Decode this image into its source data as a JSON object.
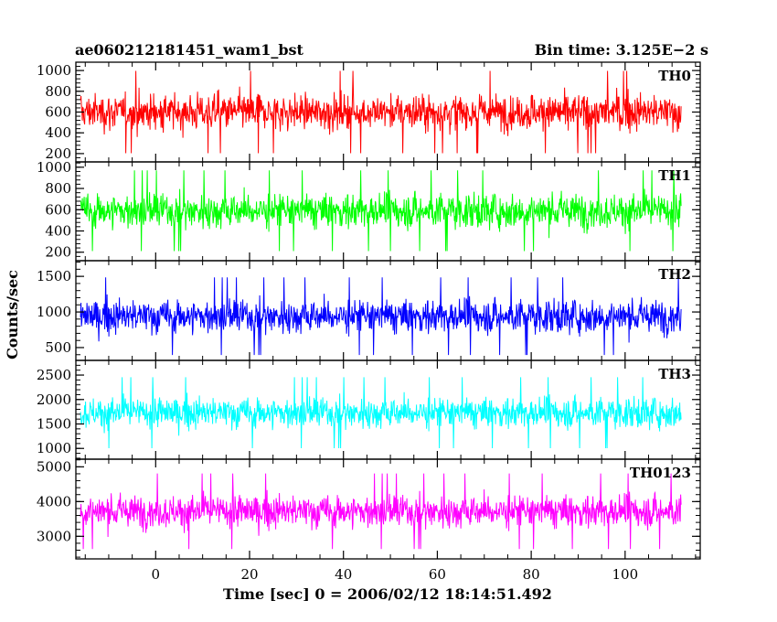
{
  "header": {
    "title": "ae060212181451_wam1_bst",
    "bin_time": "Bin time: 3.125E−2 s"
  },
  "chart_data": {
    "type": "line",
    "xlabel": "Time [sec] 0 = 2006/02/12 18:14:51.492",
    "ylabel": "Counts/sec",
    "xlim": [
      -17,
      116
    ],
    "x_ticks": [
      0,
      20,
      40,
      60,
      80,
      100
    ],
    "x_tick_labels": [
      "0",
      "20",
      "40",
      "60",
      "80",
      "100"
    ],
    "data_range": [
      -16,
      112
    ],
    "grid": false,
    "panels": [
      {
        "name": "TH0",
        "color": "#ff0000",
        "ylim": [
          120,
          1080
        ],
        "ticks": [
          200,
          400,
          600,
          800,
          1000
        ],
        "tick_labels": [
          "200",
          "400",
          "600",
          "800",
          "1000"
        ],
        "mean": 600,
        "sd": 120,
        "min": 140,
        "max": 1070
      },
      {
        "name": "TH1",
        "color": "#00ff00",
        "ylim": [
          120,
          1050
        ],
        "ticks": [
          200,
          400,
          600,
          800,
          1000
        ],
        "tick_labels": [
          "200",
          "400",
          "600",
          "800",
          "1000"
        ],
        "mean": 590,
        "sd": 115,
        "min": 150,
        "max": 1040
      },
      {
        "name": "TH2",
        "color": "#0000ff",
        "ylim": [
          320,
          1720
        ],
        "ticks": [
          500,
          1000,
          1500
        ],
        "tick_labels": [
          "500",
          "1000",
          "1500"
        ],
        "mean": 940,
        "sd": 165,
        "min": 330,
        "max": 1650
      },
      {
        "name": "TH3",
        "color": "#00ffff",
        "ylim": [
          780,
          2800
        ],
        "ticks": [
          1000,
          1500,
          2000,
          2500
        ],
        "tick_labels": [
          "1000",
          "1500",
          "2000",
          "2500"
        ],
        "mean": 1730,
        "sd": 220,
        "min": 820,
        "max": 2720
      },
      {
        "name": "TH0123",
        "color": "#ff00ff",
        "ylim": [
          2350,
          5220
        ],
        "ticks": [
          3000,
          4000,
          5000
        ],
        "tick_labels": [
          "3000",
          "4000",
          "5000"
        ],
        "mean": 3720,
        "sd": 330,
        "min": 2380,
        "max": 5120
      }
    ]
  }
}
